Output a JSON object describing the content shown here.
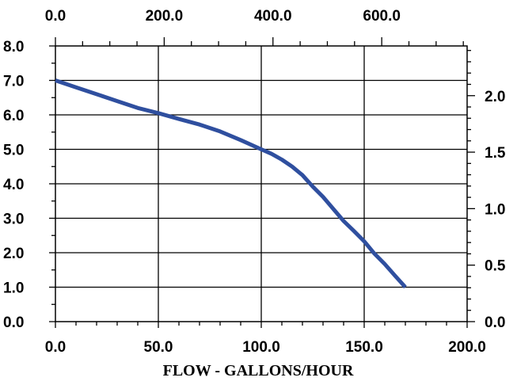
{
  "chart_data": {
    "type": "line",
    "title": "",
    "xlabel": "FLOW - GALLONS/HOUR",
    "ylabel": "",
    "x_range": [
      0,
      200
    ],
    "y_range": [
      0,
      8
    ],
    "x_ticks": [
      "0.0",
      "50.0",
      "100.0",
      "150.0",
      "200.0"
    ],
    "y_ticks": [
      "0.0",
      "1.0",
      "2.0",
      "3.0",
      "4.0",
      "5.0",
      "6.0",
      "7.0",
      "8.0"
    ],
    "top_axis": {
      "range": [
        0,
        757
      ],
      "ticks": [
        "0.0",
        "200.0",
        "400.0",
        "600.0"
      ]
    },
    "right_axis": {
      "range": [
        0,
        2.44
      ],
      "ticks": [
        "0.0",
        "0.5",
        "1.0",
        "1.5",
        "2.0"
      ]
    },
    "grid": true,
    "color": "#2f4f9f",
    "series": [
      {
        "x": [
          0,
          10,
          20,
          30,
          40,
          50,
          60,
          70,
          80,
          90,
          100,
          105,
          110,
          115,
          120,
          125,
          130,
          135,
          140,
          145,
          150,
          155,
          160,
          165,
          170
        ],
        "y": [
          7.0,
          6.8,
          6.6,
          6.4,
          6.2,
          6.05,
          5.88,
          5.72,
          5.52,
          5.27,
          5.0,
          4.87,
          4.7,
          4.5,
          4.25,
          3.92,
          3.62,
          3.27,
          2.92,
          2.63,
          2.33,
          1.97,
          1.67,
          1.33,
          1.0
        ]
      }
    ]
  }
}
